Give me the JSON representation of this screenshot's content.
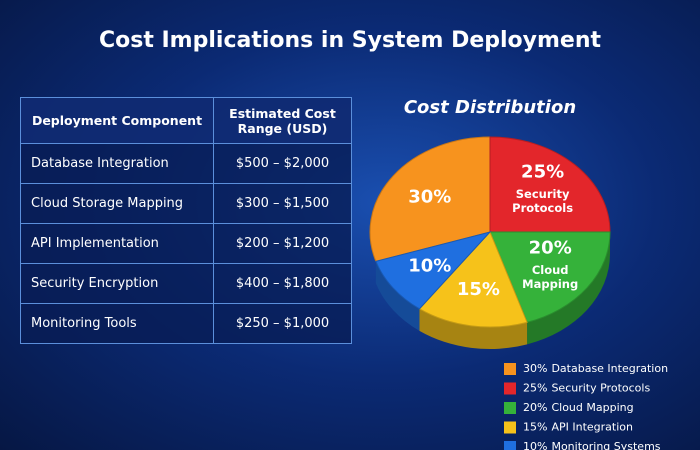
{
  "header": {
    "title": "Cost Implications in System Deployment"
  },
  "table": {
    "header": [
      "Deployment Component",
      "Estimated Cost Range (USD)"
    ],
    "rows": [
      [
        "Database Integration",
        "$500 – $2,000"
      ],
      [
        "Cloud Storage Mapping",
        "$300 – $1,500"
      ],
      [
        "API Implementation",
        "$200 – $1,200"
      ],
      [
        "Security Encryption",
        "$400 – $1,800"
      ],
      [
        "Monitoring Tools",
        "$250 – $1,000"
      ]
    ]
  },
  "chart_data": {
    "type": "pie",
    "title": "Cost Distribution",
    "categories": [
      "Database Integration",
      "Security Protocols",
      "Cloud Mapping",
      "API Integration",
      "Monitoring Systems"
    ],
    "values": [
      30,
      25,
      20,
      15,
      10
    ],
    "value_labels": [
      "30%",
      "25%",
      "20%",
      "15%",
      "10%"
    ],
    "slice_text": [
      null,
      [
        "Security",
        "Protocols"
      ],
      [
        "Cloud",
        "Mapping"
      ],
      null,
      null
    ],
    "colors": [
      "#f7931e",
      "#e3262b",
      "#35b23a",
      "#f6c21a",
      "#1f6fe0"
    ]
  }
}
